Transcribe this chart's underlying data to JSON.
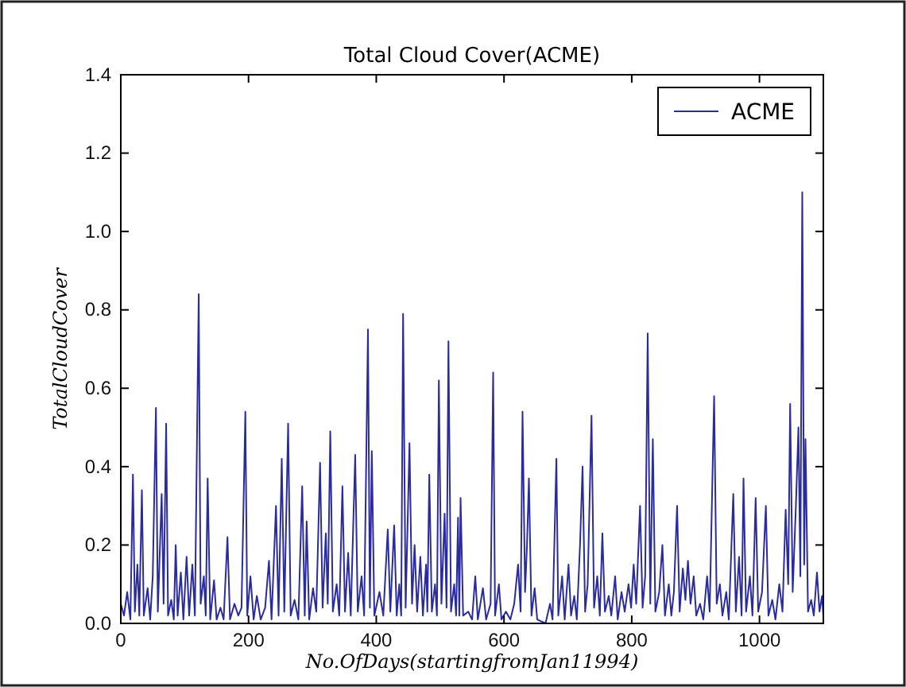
{
  "chart_data": {
    "type": "line",
    "title": "Total Cloud Cover(ACME)",
    "xlabel": "No.OfDays(startingfromJan11994)",
    "ylabel": "TotalCloudCover",
    "xlim": [
      0,
      1100
    ],
    "xticks": [
      0,
      200,
      400,
      600,
      800,
      1000
    ],
    "ylim": [
      0,
      1.4
    ],
    "yticks": [
      {
        "value": 0,
        "label": "0.0"
      },
      {
        "value": 0.2,
        "label": "0.2"
      },
      {
        "value": 0.4,
        "label": "0.4"
      },
      {
        "value": 0.6,
        "label": "0.6"
      },
      {
        "value": 0.8,
        "label": "0.8"
      },
      {
        "value": 1,
        "label": "1.0"
      },
      {
        "value": 1.2,
        "label": "1.2"
      },
      {
        "value": 1.4,
        "label": "1.4"
      }
    ],
    "legend": "top right",
    "grid": false,
    "series": [
      {
        "name": "ACME",
        "color": "#2b2ba0",
        "x": [
          0,
          5,
          10,
          15,
          19,
          22,
          26,
          29,
          33,
          36,
          42,
          46,
          50,
          55,
          58,
          64,
          67,
          71,
          74,
          79,
          83,
          86,
          89,
          94,
          98,
          103,
          107,
          112,
          116,
          122,
          125,
          130,
          133,
          136,
          140,
          146,
          150,
          156,
          161,
          167,
          171,
          178,
          184,
          189,
          195,
          198,
          203,
          208,
          213,
          219,
          226,
          232,
          236,
          243,
          247,
          252,
          256,
          262,
          266,
          272,
          278,
          284,
          288,
          291,
          295,
          301,
          306,
          312,
          316,
          321,
          324,
          328,
          332,
          338,
          342,
          347,
          351,
          356,
          360,
          367,
          371,
          377,
          381,
          387,
          390,
          393,
          397,
          405,
          411,
          418,
          422,
          428,
          432,
          436,
          439,
          442,
          446,
          452,
          456,
          460,
          464,
          469,
          473,
          478,
          480,
          483,
          487,
          492,
          495,
          498,
          502,
          507,
          510,
          513,
          517,
          522,
          525,
          528,
          530,
          532,
          536,
          544,
          550,
          555,
          559,
          567,
          572,
          579,
          583,
          586,
          592,
          596,
          603,
          610,
          616,
          622,
          626,
          629,
          633,
          636,
          639,
          643,
          648,
          652,
          665,
          672,
          676,
          682,
          685,
          691,
          695,
          701,
          705,
          710,
          714,
          719,
          723,
          727,
          731,
          737,
          741,
          746,
          750,
          754,
          758,
          764,
          768,
          774,
          778,
          784,
          789,
          795,
          799,
          803,
          807,
          813,
          817,
          821,
          825,
          829,
          833,
          837,
          843,
          848,
          852,
          858,
          862,
          866,
          871,
          875,
          880,
          884,
          888,
          892,
          897,
          901,
          907,
          912,
          918,
          922,
          929,
          933,
          938,
          942,
          948,
          952,
          959,
          963,
          968,
          972,
          975,
          979,
          985,
          989,
          994,
          998,
          1004,
          1010,
          1014,
          1020,
          1025,
          1031,
          1036,
          1041,
          1045,
          1048,
          1052,
          1057,
          1061,
          1064,
          1067,
          1070,
          1072,
          1076,
          1081,
          1085,
          1090,
          1094,
          1098,
          1100
        ],
        "values": [
          0.05,
          0.02,
          0.08,
          0.01,
          0.38,
          0.03,
          0.15,
          0.02,
          0.34,
          0.02,
          0.09,
          0.01,
          0.12,
          0.55,
          0.03,
          0.33,
          0.05,
          0.51,
          0.02,
          0.06,
          0.01,
          0.2,
          0.02,
          0.13,
          0.01,
          0.17,
          0.02,
          0.15,
          0.02,
          0.84,
          0.05,
          0.12,
          0.02,
          0.37,
          0.01,
          0.11,
          0.01,
          0.04,
          0.01,
          0.22,
          0.01,
          0.05,
          0.02,
          0.04,
          0.54,
          0.02,
          0.12,
          0.01,
          0.07,
          0.01,
          0.04,
          0.16,
          0.01,
          0.3,
          0.02,
          0.42,
          0.03,
          0.51,
          0.02,
          0.06,
          0.01,
          0.35,
          0.02,
          0.26,
          0.01,
          0.09,
          0.03,
          0.41,
          0.04,
          0.23,
          0.05,
          0.49,
          0.03,
          0.1,
          0.02,
          0.35,
          0.03,
          0.18,
          0.02,
          0.43,
          0.03,
          0.12,
          0.02,
          0.75,
          0.04,
          0.44,
          0.02,
          0.08,
          0.02,
          0.24,
          0.03,
          0.25,
          0.02,
          0.1,
          0.02,
          0.79,
          0.04,
          0.46,
          0.05,
          0.2,
          0.03,
          0.17,
          0.02,
          0.15,
          0.03,
          0.38,
          0.03,
          0.1,
          0.02,
          0.62,
          0.05,
          0.28,
          0.04,
          0.72,
          0.03,
          0.1,
          0.02,
          0.27,
          0.02,
          0.32,
          0.02,
          0.03,
          0.01,
          0.12,
          0.01,
          0.09,
          0.01,
          0.05,
          0.64,
          0.02,
          0.1,
          0.01,
          0.03,
          0.01,
          0.05,
          0.15,
          0.03,
          0.54,
          0.08,
          0.2,
          0.37,
          0.02,
          0.09,
          0.01,
          0,
          0.05,
          0.01,
          0.42,
          0.02,
          0.12,
          0.01,
          0.15,
          0.02,
          0.07,
          0.01,
          0.2,
          0.4,
          0.03,
          0.1,
          0.53,
          0.04,
          0.12,
          0.02,
          0.23,
          0.03,
          0.07,
          0.02,
          0.12,
          0.01,
          0.08,
          0.03,
          0.1,
          0.04,
          0.15,
          0.05,
          0.3,
          0.04,
          0.12,
          0.74,
          0.05,
          0.47,
          0.03,
          0.08,
          0.2,
          0.02,
          0.1,
          0.02,
          0.08,
          0.3,
          0.03,
          0.14,
          0.06,
          0.16,
          0.05,
          0.12,
          0.02,
          0.05,
          0.01,
          0.12,
          0.03,
          0.58,
          0.05,
          0.1,
          0.02,
          0.08,
          0.01,
          0.33,
          0.03,
          0.17,
          0.02,
          0.37,
          0.03,
          0.12,
          0.02,
          0.32,
          0.03,
          0.08,
          0.3,
          0.02,
          0.06,
          0.01,
          0.1,
          0.03,
          0.29,
          0.1,
          0.56,
          0.08,
          0.3,
          0.5,
          0.12,
          1.1,
          0.15,
          0.47,
          0.03,
          0.06,
          0.02,
          0.13,
          0.03,
          0.07,
          0.02
        ]
      }
    ]
  }
}
